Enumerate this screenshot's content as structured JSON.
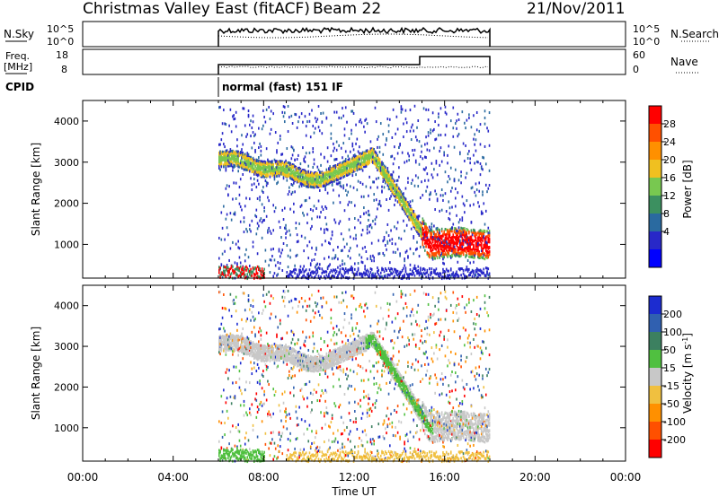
{
  "header": {
    "title": "Christmas Valley East (fitACF)",
    "beam": "Beam 22",
    "date": "21/Nov/2011"
  },
  "status_panels": {
    "noise_label": "N.Sky",
    "noise_ticks": [
      "10^5",
      "10^0"
    ],
    "noise_right_ticks": [
      "10^5",
      "10^0"
    ],
    "noise_right_label": "N.Search",
    "freq_label_line1": "Freq.",
    "freq_label_line2": "[MHz]",
    "freq_ticks": [
      "18",
      "8"
    ],
    "nave_ticks": [
      "60",
      "0"
    ],
    "nave_label": "Nave",
    "cpid_label": "CPID",
    "cpid_value": "normal (fast) 151 IF"
  },
  "chart_data": [
    {
      "type": "heatmap",
      "name": "power",
      "ylabel": "Slant Range [km]",
      "xlabel": "",
      "xlim_hours": [
        0,
        24
      ],
      "ylim": [
        180,
        4500
      ],
      "yticks": [
        1000,
        2000,
        3000,
        4000
      ],
      "colorbar": {
        "label": "Power [dB]",
        "ticks": [
          "28",
          "24",
          "20",
          "16",
          "12",
          "8",
          "4"
        ],
        "colors": [
          "#ff0000",
          "#ff5000",
          "#ff9000",
          "#f0c020",
          "#78c850",
          "#3c9060",
          "#2a6aa0",
          "#2828c8",
          "#0000ff"
        ]
      },
      "data_window_hours": [
        6,
        18
      ]
    },
    {
      "type": "heatmap",
      "name": "velocity",
      "ylabel": "Slant Range [km]",
      "xlabel": "Time UT",
      "xlim_hours": [
        0,
        24
      ],
      "ylim": [
        180,
        4500
      ],
      "yticks": [
        1000,
        2000,
        3000,
        4000
      ],
      "xticks": [
        "00:00",
        "04:00",
        "08:00",
        "12:00",
        "16:00",
        "20:00",
        "00:00"
      ],
      "colorbar": {
        "label": "Velocity [m s^-1]",
        "label_main": "Velocity [m s",
        "label_sup": "-1",
        "label_end": "]",
        "ticks": [
          "200",
          "100",
          "50",
          "15",
          "-15",
          "-50",
          "-100",
          "-200"
        ],
        "colors": [
          "#1c2cd0",
          "#3060b0",
          "#3c8060",
          "#50c040",
          "#c8c8c8",
          "#f0c040",
          "#ff9000",
          "#ff5000",
          "#ff0000"
        ]
      },
      "data_window_hours": [
        6,
        18
      ]
    }
  ]
}
